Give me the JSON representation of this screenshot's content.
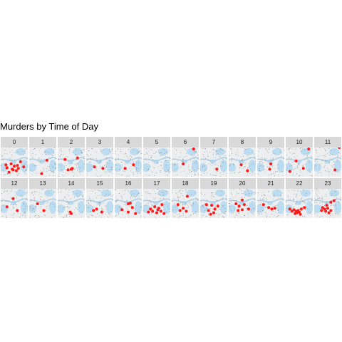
{
  "chart_data": {
    "type": "scatter",
    "title": "Murders by Time of Day",
    "facet_by": "hour",
    "facets": [
      {
        "label": "0",
        "points": [
          [
            -95.42,
            29.77
          ],
          [
            -95.39,
            29.74
          ],
          [
            -95.35,
            29.71
          ],
          [
            -95.46,
            29.72
          ],
          [
            -95.4,
            29.69
          ],
          [
            -95.33,
            29.8
          ],
          [
            -95.44,
            29.66
          ],
          [
            -95.37,
            29.68
          ],
          [
            -95.3,
            29.73
          ],
          [
            -95.41,
            29.7
          ],
          [
            -95.36,
            29.75
          ],
          [
            -95.47,
            29.76
          ]
        ]
      },
      {
        "label": "1",
        "points": [
          [
            -95.35,
            29.82
          ],
          [
            -95.4,
            29.64
          ]
        ]
      },
      {
        "label": "2",
        "points": [
          [
            -95.33,
            29.85
          ],
          [
            -95.45,
            29.83
          ],
          [
            -95.39,
            29.7
          ],
          [
            -95.42,
            29.69
          ],
          [
            -95.38,
            29.71
          ]
        ]
      },
      {
        "label": "3",
        "points": [
          [
            -95.44,
            29.73
          ],
          [
            -95.36,
            29.71
          ]
        ]
      },
      {
        "label": "4",
        "points": [
          [
            -95.34,
            29.76
          ],
          [
            -95.42,
            29.71
          ]
        ]
      },
      {
        "label": "5",
        "points": []
      },
      {
        "label": "6",
        "points": [
          [
            -95.31,
            29.97
          ],
          [
            -95.41,
            29.77
          ]
        ]
      },
      {
        "label": "7",
        "points": [
          [
            -95.36,
            29.7
          ]
        ]
      },
      {
        "label": "8",
        "points": [
          [
            -95.4,
            29.76
          ],
          [
            -95.34,
            29.68
          ]
        ]
      },
      {
        "label": "9",
        "points": [
          [
            -95.39,
            29.77
          ],
          [
            -95.4,
            29.7
          ]
        ]
      },
      {
        "label": "10",
        "points": [
          [
            -95.3,
            29.97
          ],
          [
            -95.42,
            29.81
          ],
          [
            -95.35,
            29.71
          ],
          [
            -95.48,
            29.67
          ]
        ]
      },
      {
        "label": "11",
        "points": [
          [
            -95.32,
            29.69
          ],
          [
            -95.28,
            29.99
          ]
        ]
      },
      {
        "label": "12",
        "points": [
          [
            -95.4,
            29.86
          ],
          [
            -95.46,
            29.75
          ],
          [
            -95.36,
            29.7
          ]
        ]
      },
      {
        "label": "13",
        "points": [
          [
            -95.44,
            29.79
          ],
          [
            -95.38,
            29.7
          ]
        ]
      },
      {
        "label": "14",
        "points": [
          [
            -95.4,
            29.68
          ],
          [
            -95.39,
            29.66
          ]
        ]
      },
      {
        "label": "15",
        "points": [
          [
            -95.45,
            29.7
          ],
          [
            -95.42,
            29.72
          ],
          [
            -95.37,
            29.68
          ]
        ]
      },
      {
        "label": "16",
        "points": [
          [
            -95.39,
            29.79
          ],
          [
            -95.37,
            29.8
          ],
          [
            -95.35,
            29.74
          ],
          [
            -95.45,
            29.71
          ],
          [
            -95.39,
            29.68
          ],
          [
            -95.32,
            29.66
          ]
        ]
      },
      {
        "label": "17",
        "points": [
          [
            -95.34,
            29.78
          ],
          [
            -95.41,
            29.75
          ],
          [
            -95.37,
            29.73
          ],
          [
            -95.38,
            29.71
          ],
          [
            -95.45,
            29.72
          ],
          [
            -95.43,
            29.69
          ],
          [
            -95.35,
            29.69
          ],
          [
            -95.39,
            29.67
          ],
          [
            -95.32,
            29.66
          ],
          [
            -95.47,
            29.68
          ]
        ]
      },
      {
        "label": "18",
        "points": [
          [
            -95.37,
            29.89
          ],
          [
            -95.46,
            29.78
          ],
          [
            -95.41,
            29.73
          ],
          [
            -95.44,
            29.7
          ],
          [
            -95.38,
            29.69
          ]
        ]
      },
      {
        "label": "19",
        "points": [
          [
            -95.46,
            29.78
          ],
          [
            -95.41,
            29.77
          ],
          [
            -95.35,
            29.76
          ],
          [
            -95.38,
            29.72
          ],
          [
            -95.44,
            29.7
          ],
          [
            -95.39,
            29.67
          ],
          [
            -95.42,
            29.65
          ]
        ]
      },
      {
        "label": "20",
        "points": [
          [
            -95.39,
            29.84
          ],
          [
            -95.45,
            29.79
          ],
          [
            -95.42,
            29.76
          ],
          [
            -95.37,
            29.78
          ],
          [
            -95.33,
            29.72
          ],
          [
            -95.39,
            29.71
          ],
          [
            -95.43,
            29.7
          ]
        ]
      },
      {
        "label": "21",
        "points": [
          [
            -95.46,
            29.78
          ],
          [
            -95.41,
            29.74
          ],
          [
            -95.38,
            29.72
          ],
          [
            -95.35,
            29.73
          ]
        ]
      },
      {
        "label": "22",
        "points": [
          [
            -95.48,
            29.72
          ],
          [
            -95.44,
            29.71
          ],
          [
            -95.42,
            29.69
          ],
          [
            -95.4,
            29.7
          ],
          [
            -95.39,
            29.68
          ],
          [
            -95.41,
            29.67
          ],
          [
            -95.37,
            29.72
          ],
          [
            -95.34,
            29.74
          ],
          [
            -95.43,
            29.66
          ],
          [
            -95.38,
            29.65
          ],
          [
            -95.46,
            29.69
          ]
        ]
      },
      {
        "label": "23",
        "points": [
          [
            -95.33,
            29.83
          ],
          [
            -95.36,
            29.81
          ],
          [
            -95.4,
            29.77
          ],
          [
            -95.44,
            29.74
          ],
          [
            -95.42,
            29.72
          ],
          [
            -95.39,
            29.73
          ],
          [
            -95.36,
            29.7
          ],
          [
            -95.41,
            29.69
          ],
          [
            -95.45,
            29.7
          ],
          [
            -95.38,
            29.67
          ]
        ]
      }
    ],
    "xlim": [
      -95.52,
      -95.26
    ],
    "ylim": [
      29.6,
      29.99
    ],
    "point_color": "#ff1a1a",
    "background": "map-tiles",
    "legend": "none"
  }
}
